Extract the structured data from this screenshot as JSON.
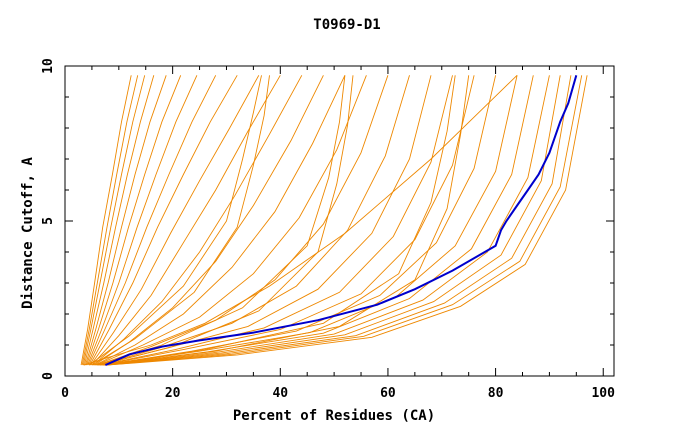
{
  "chart_data": {
    "type": "line",
    "title": "T0969-D1",
    "xlabel": "Percent of Residues (CA)",
    "ylabel": "Distance Cutoff, A",
    "xlim": [
      0,
      102
    ],
    "ylim": [
      0,
      10
    ],
    "x_ticks": [
      0,
      20,
      40,
      60,
      80,
      100
    ],
    "y_ticks": [
      0,
      5,
      10
    ],
    "x_tick_labels": [
      "0",
      "20",
      "40",
      "60",
      "80",
      "100"
    ],
    "y_tick_labels": [
      "0",
      "5",
      "10"
    ],
    "grid": false,
    "legend": "none",
    "colors": {
      "models": "#ee8800",
      "highlight": "#0000cc",
      "axes": "#000000"
    },
    "highlight_series": {
      "x": [
        7.5,
        12,
        18,
        25,
        35,
        47,
        58,
        65,
        72,
        80,
        81,
        82,
        84,
        86,
        88,
        90,
        92,
        93.5,
        95
      ],
      "y": [
        0.35,
        0.7,
        0.95,
        1.15,
        1.4,
        1.8,
        2.3,
        2.8,
        3.4,
        4.2,
        4.7,
        5.0,
        5.5,
        6.0,
        6.5,
        7.2,
        8.2,
        8.8,
        9.7
      ]
    },
    "model_series": [
      {
        "x": [
          3.0,
          4.2,
          5.5,
          7.0,
          8.8,
          10.5,
          12.3
        ],
        "y": [
          0.35,
          1.5,
          3.0,
          4.8,
          6.5,
          8.2,
          9.7
        ]
      },
      {
        "x": [
          3.2,
          4.5,
          6.0,
          7.8,
          9.6,
          11.5,
          13.5
        ],
        "y": [
          0.35,
          1.5,
          3.0,
          4.8,
          6.5,
          8.2,
          9.7
        ]
      },
      {
        "x": [
          3.4,
          4.8,
          6.5,
          8.5,
          10.5,
          12.6,
          14.8
        ],
        "y": [
          0.35,
          1.5,
          3.0,
          4.8,
          6.5,
          8.2,
          9.7
        ]
      },
      {
        "x": [
          3.6,
          5.2,
          7.2,
          9.4,
          11.6,
          14.0,
          16.5
        ],
        "y": [
          0.35,
          1.5,
          3.0,
          4.8,
          6.5,
          8.2,
          9.7
        ]
      },
      {
        "x": [
          3.8,
          5.7,
          8.0,
          10.5,
          13.0,
          15.8,
          18.8
        ],
        "y": [
          0.35,
          1.5,
          3.0,
          4.8,
          6.5,
          8.2,
          9.7
        ]
      },
      {
        "x": [
          4.0,
          6.2,
          8.9,
          11.8,
          14.8,
          18.0,
          21.5
        ],
        "y": [
          0.35,
          1.5,
          3.0,
          4.8,
          6.5,
          8.2,
          9.7
        ]
      },
      {
        "x": [
          4.2,
          6.8,
          10.0,
          13.4,
          16.9,
          20.6,
          24.5
        ],
        "y": [
          0.35,
          1.5,
          3.0,
          4.8,
          6.5,
          8.2,
          9.7
        ]
      },
      {
        "x": [
          4.4,
          7.4,
          11.2,
          15.2,
          19.3,
          23.6,
          28.0
        ],
        "y": [
          0.35,
          1.5,
          3.0,
          4.8,
          6.5,
          8.2,
          9.7
        ]
      },
      {
        "x": [
          4.6,
          8.2,
          12.6,
          17.2,
          22.0,
          27.0,
          32.0
        ],
        "y": [
          0.35,
          1.5,
          3.0,
          4.8,
          6.5,
          8.2,
          9.7
        ]
      },
      {
        "x": [
          4.8,
          9.0,
          14.2,
          19.6,
          25.0,
          30.6,
          36.0
        ],
        "y": [
          0.35,
          1.4,
          2.8,
          4.6,
          6.3,
          8.0,
          9.7
        ]
      },
      {
        "x": [
          5.0,
          10.0,
          16.0,
          22.0,
          28.0,
          34.0,
          40.0
        ],
        "y": [
          0.35,
          1.3,
          2.6,
          4.3,
          6.0,
          7.9,
          9.7
        ]
      },
      {
        "x": [
          5.2,
          11.0,
          18.0,
          25.0,
          31.5,
          38.0,
          44.0
        ],
        "y": [
          0.35,
          1.2,
          2.4,
          4.0,
          5.8,
          7.8,
          9.7
        ]
      },
      {
        "x": [
          5.4,
          12.0,
          20.0,
          28.0,
          35.0,
          42.0,
          48.0
        ],
        "y": [
          0.35,
          1.1,
          2.2,
          3.7,
          5.5,
          7.6,
          9.7
        ]
      },
      {
        "x": [
          5.6,
          13.0,
          22.0,
          31.0,
          39.0,
          46.0,
          52.0
        ],
        "y": [
          0.35,
          1.0,
          2.0,
          3.5,
          5.3,
          7.5,
          9.7
        ]
      },
      {
        "x": [
          5.8,
          14.5,
          25.0,
          35.0,
          43.5,
          50.5,
          56.0
        ],
        "y": [
          0.35,
          1.0,
          1.9,
          3.3,
          5.1,
          7.3,
          9.7
        ]
      },
      {
        "x": [
          6.0,
          16.0,
          28.0,
          39.0,
          48.0,
          55.0,
          60.0
        ],
        "y": [
          0.35,
          0.95,
          1.8,
          3.1,
          4.9,
          7.2,
          9.7
        ]
      },
      {
        "x": [
          6.2,
          17.5,
          31.0,
          43.0,
          52.5,
          59.5,
          64.0
        ],
        "y": [
          0.35,
          0.9,
          1.7,
          2.9,
          4.7,
          7.1,
          9.7
        ]
      },
      {
        "x": [
          6.4,
          19.0,
          34.0,
          47.0,
          57.0,
          64.0,
          68.0
        ],
        "y": [
          0.35,
          0.9,
          1.6,
          2.8,
          4.6,
          7.0,
          9.7
        ]
      },
      {
        "x": [
          6.6,
          20.5,
          37.0,
          51.0,
          61.0,
          68.0,
          72.0
        ],
        "y": [
          0.35,
          0.85,
          1.55,
          2.7,
          4.5,
          6.9,
          9.7
        ]
      },
      {
        "x": [
          6.8,
          22.0,
          40.0,
          55.0,
          65.0,
          72.0,
          76.0
        ],
        "y": [
          0.35,
          0.85,
          1.5,
          2.65,
          4.4,
          6.8,
          9.7
        ]
      },
      {
        "x": [
          7.0,
          23.5,
          43.0,
          58.5,
          69.0,
          76.0,
          80.0
        ],
        "y": [
          0.35,
          0.8,
          1.45,
          2.6,
          4.3,
          6.7,
          9.7
        ]
      },
      {
        "x": [
          7.2,
          25.0,
          45.5,
          61.5,
          72.5,
          80.0,
          84.0
        ],
        "y": [
          0.35,
          0.8,
          1.4,
          2.55,
          4.2,
          6.6,
          9.7
        ]
      },
      {
        "x": [
          7.3,
          26.5,
          48.0,
          64.0,
          75.5,
          83.0,
          87.0
        ],
        "y": [
          0.35,
          0.78,
          1.38,
          2.5,
          4.1,
          6.5,
          9.7
        ]
      },
      {
        "x": [
          7.4,
          28.0,
          50.0,
          66.5,
          78.5,
          86.0,
          90.0
        ],
        "y": [
          0.35,
          0.76,
          1.35,
          2.45,
          4.0,
          6.4,
          9.7
        ]
      },
      {
        "x": [
          7.5,
          29.0,
          52.0,
          68.5,
          81.0,
          88.5,
          92.0
        ],
        "y": [
          0.35,
          0.74,
          1.33,
          2.4,
          3.9,
          6.3,
          9.7
        ]
      },
      {
        "x": [
          7.6,
          30.0,
          54.0,
          70.5,
          83.0,
          90.5,
          94.0
        ],
        "y": [
          0.35,
          0.72,
          1.3,
          2.35,
          3.8,
          6.2,
          9.7
        ]
      },
      {
        "x": [
          7.7,
          31.0,
          55.5,
          72.0,
          84.5,
          92.0,
          96.0
        ],
        "y": [
          0.35,
          0.7,
          1.28,
          2.3,
          3.7,
          6.1,
          9.7
        ]
      },
      {
        "x": [
          7.8,
          32.0,
          57.0,
          73.5,
          85.5,
          93.0,
          97.0
        ],
        "y": [
          0.35,
          0.68,
          1.25,
          2.25,
          3.6,
          6.0,
          9.7
        ]
      },
      {
        "x": [
          3.5,
          8.0,
          16.0,
          26.0,
          38.0,
          52.0,
          68.0,
          84.0
        ],
        "y": [
          0.35,
          0.6,
          1.0,
          1.7,
          2.9,
          4.6,
          7.0,
          9.7
        ]
      },
      {
        "x": [
          4.5,
          12.0,
          22.0,
          30.0,
          33.0,
          35.0,
          36.5
        ],
        "y": [
          0.35,
          1.3,
          2.9,
          5.0,
          7.0,
          8.5,
          9.7
        ]
      },
      {
        "x": [
          5.0,
          13.0,
          24.0,
          32.0,
          35.0,
          37.0,
          38.0
        ],
        "y": [
          0.35,
          1.2,
          2.7,
          4.8,
          6.8,
          8.4,
          9.7
        ]
      },
      {
        "x": [
          6.0,
          18.0,
          33.0,
          45.0,
          49.0,
          51.0,
          52.0
        ],
        "y": [
          0.35,
          1.0,
          2.2,
          4.2,
          6.4,
          8.2,
          9.7
        ]
      },
      {
        "x": [
          6.5,
          20.0,
          36.0,
          47.0,
          50.5,
          52.5,
          53.5
        ],
        "y": [
          0.35,
          0.95,
          2.1,
          4.0,
          6.2,
          8.1,
          9.7
        ]
      },
      {
        "x": [
          7.0,
          26.0,
          48.0,
          62.0,
          68.0,
          71.0,
          72.5
        ],
        "y": [
          0.35,
          0.85,
          1.7,
          3.3,
          5.6,
          7.9,
          9.7
        ]
      },
      {
        "x": [
          7.2,
          28.0,
          51.0,
          65.0,
          71.0,
          73.5,
          75.0
        ],
        "y": [
          0.35,
          0.8,
          1.6,
          3.1,
          5.4,
          7.8,
          9.7
        ]
      }
    ]
  }
}
